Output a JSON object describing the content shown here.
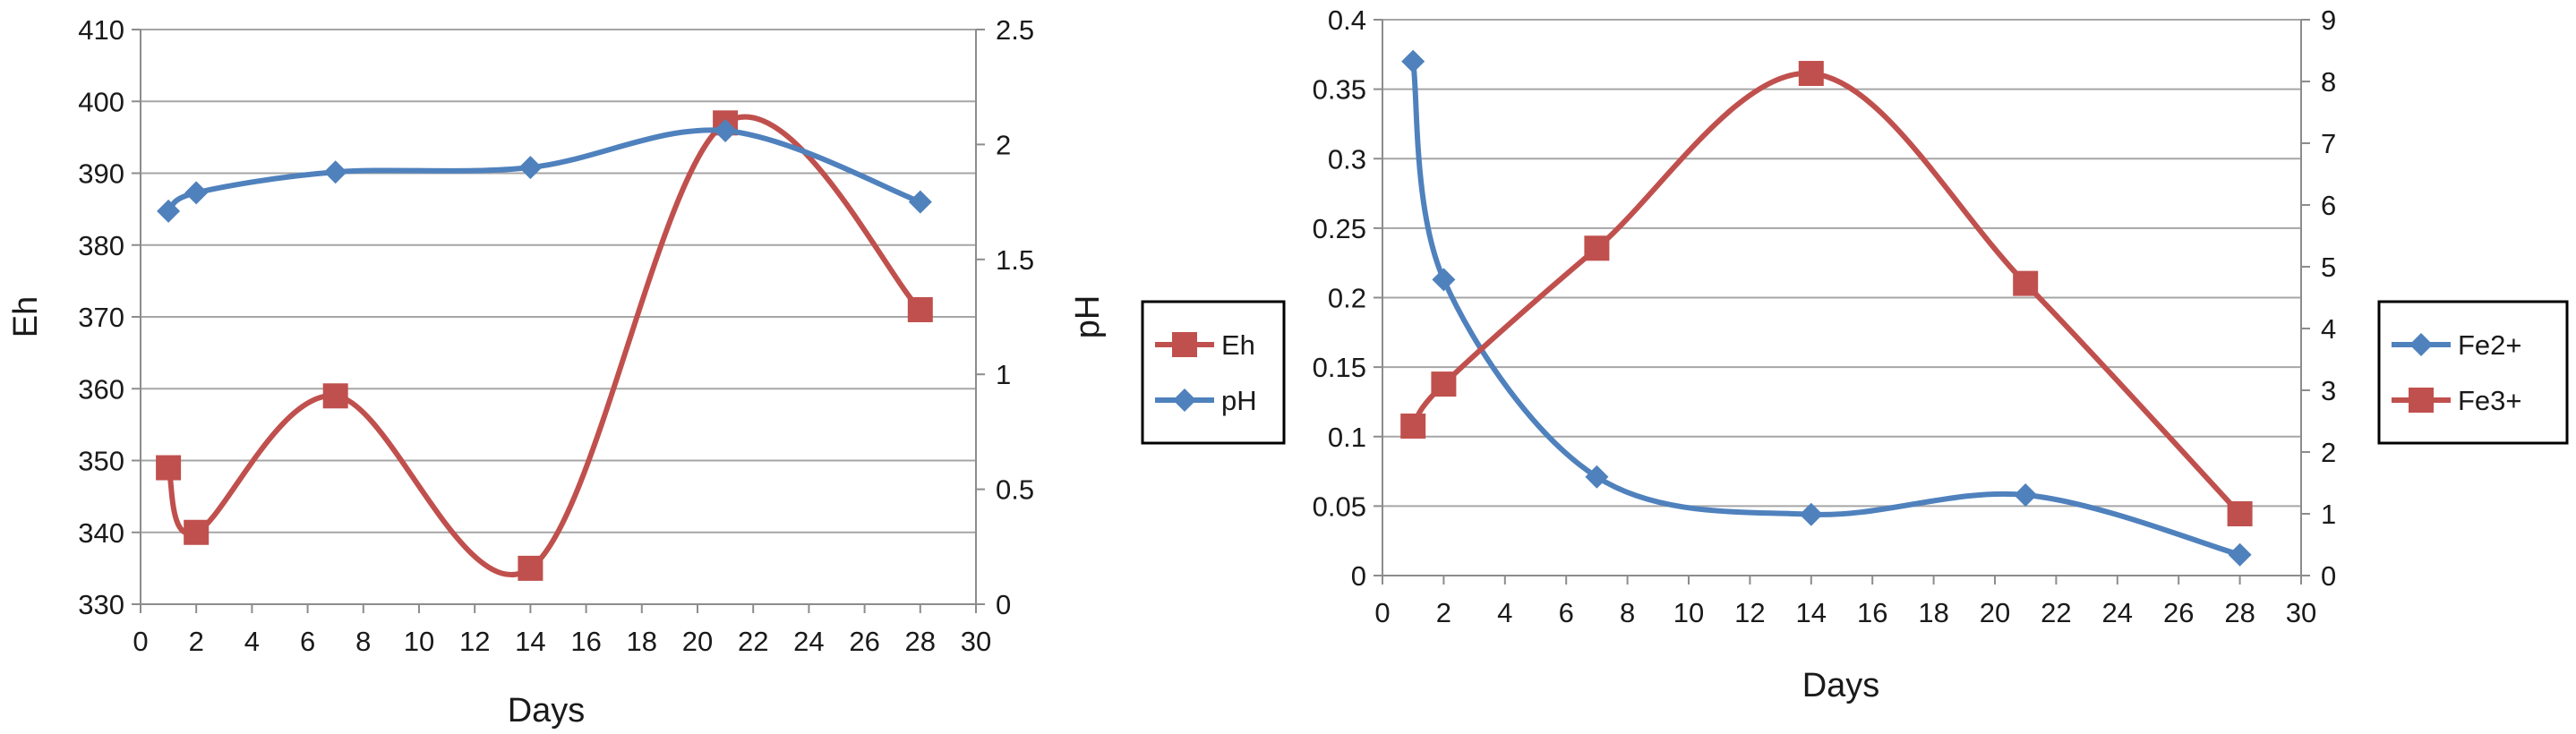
{
  "chart_data": [
    {
      "type": "line",
      "xlabel": "Days",
      "ylabel_left": "Eh",
      "ylabel_right": "pH",
      "xlim": [
        0,
        30
      ],
      "x_ticks": [
        "0",
        "2",
        "4",
        "6",
        "8",
        "10",
        "12",
        "14",
        "16",
        "18",
        "20",
        "22",
        "24",
        "26",
        "28",
        "30"
      ],
      "ylim_left": [
        330,
        410
      ],
      "y_ticks_left": [
        "330",
        "340",
        "350",
        "360",
        "370",
        "380",
        "390",
        "400",
        "410"
      ],
      "ylim_right": [
        0,
        2.5
      ],
      "y_ticks_right": [
        "0",
        "0.5",
        "1",
        "1.5",
        "2",
        "2.5"
      ],
      "grid": "horizontal",
      "legend_position": "right",
      "series": [
        {
          "name": "Eh",
          "axis": "left",
          "color": "#c0504d",
          "marker": "square",
          "x": [
            1,
            2,
            7,
            14,
            21,
            28
          ],
          "values": [
            349,
            340,
            359,
            335,
            397,
            371
          ]
        },
        {
          "name": "pH",
          "axis": "right",
          "color": "#4f81bd",
          "marker": "diamond",
          "x": [
            1,
            2,
            7,
            14,
            21,
            28
          ],
          "values": [
            1.71,
            1.79,
            1.88,
            1.9,
            2.06,
            1.75
          ]
        }
      ]
    },
    {
      "type": "line",
      "xlabel": "Days",
      "ylabel_left": "",
      "ylabel_right": "",
      "xlim": [
        0,
        30
      ],
      "x_ticks": [
        "0",
        "2",
        "4",
        "6",
        "8",
        "10",
        "12",
        "14",
        "16",
        "18",
        "20",
        "22",
        "24",
        "26",
        "28",
        "30"
      ],
      "ylim_left": [
        0,
        0.4
      ],
      "y_ticks_left": [
        "0",
        "0.05",
        "0.1",
        "0.15",
        "0.2",
        "0.25",
        "0.3",
        "0.35",
        "0.4"
      ],
      "ylim_right": [
        0,
        9
      ],
      "y_ticks_right": [
        "0",
        "1",
        "2",
        "3",
        "4",
        "5",
        "6",
        "7",
        "8",
        "9"
      ],
      "grid": "horizontal",
      "legend_position": "right",
      "series": [
        {
          "name": "Fe2+",
          "axis": "left",
          "color": "#4f81bd",
          "marker": "diamond",
          "x": [
            1,
            2,
            7,
            14,
            21,
            28
          ],
          "values": [
            0.37,
            0.213,
            0.071,
            0.044,
            0.058,
            0.015
          ]
        },
        {
          "name": "Fe3+",
          "axis": "right",
          "color": "#c0504d",
          "marker": "square",
          "x": [
            1,
            2,
            7,
            14,
            21,
            28
          ],
          "values": [
            2.42,
            3.1,
            5.3,
            8.13,
            4.73,
            1.0
          ]
        }
      ]
    }
  ]
}
